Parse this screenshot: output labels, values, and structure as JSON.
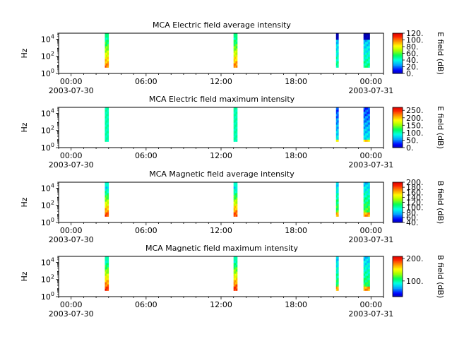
{
  "chart_data": [
    {
      "type": "heatmap",
      "title": "MCA  Electric field average intensity",
      "ylabel": "Hz",
      "colorbar_label": "E field (dB)",
      "colorbar_ticks": [
        "0.",
        "20.",
        "40.",
        "60.",
        "80.",
        "100.",
        "120."
      ],
      "colorbar_range": [
        0,
        120
      ],
      "pattern": "avg"
    },
    {
      "type": "heatmap",
      "title": "MCA  Electric field maximum intensity",
      "ylabel": "Hz",
      "colorbar_label": "E field (dB)",
      "colorbar_ticks": [
        "0.",
        "50.",
        "100.",
        "150.",
        "200.",
        "250."
      ],
      "colorbar_range": [
        0,
        270
      ],
      "pattern": "max"
    },
    {
      "type": "heatmap",
      "title": "MCA  Magnetic field average intensity",
      "ylabel": "Hz",
      "colorbar_label": "B field (dB)",
      "colorbar_ticks": [
        "40.",
        "60.",
        "80.",
        "100.",
        "120.",
        "140.",
        "160.",
        "180.",
        "200."
      ],
      "colorbar_range": [
        40,
        200
      ],
      "pattern": "bavg"
    },
    {
      "type": "heatmap",
      "title": "MCA  Magnetic field maximum intensity",
      "ylabel": "Hz",
      "colorbar_label": "B field (dB)",
      "colorbar_ticks": [
        "100.",
        "200."
      ],
      "colorbar_range": [
        30,
        210
      ],
      "pattern": "bmax"
    }
  ],
  "x_axis": {
    "tick_labels": [
      "00:00",
      "06:00",
      "12:00",
      "18:00",
      "00:00"
    ],
    "date_labels": [
      "2003-07-30",
      "",
      "",
      "",
      "2003-07-31"
    ],
    "tick_hours": [
      0,
      6,
      12,
      18,
      24
    ],
    "range_hours": [
      -1,
      25
    ]
  },
  "y_axis": {
    "tick_labels": [
      "10^0",
      "10^2",
      "10^4"
    ],
    "range_log10": [
      0,
      4.7
    ],
    "data_min_log10": 0.7
  },
  "time_segments_hours": [
    {
      "start": 2.7,
      "end": 3.0
    },
    {
      "start": 13.0,
      "end": 13.3
    },
    {
      "start": 21.2,
      "end": 21.4
    },
    {
      "start": 23.4,
      "end": 23.9
    }
  ]
}
